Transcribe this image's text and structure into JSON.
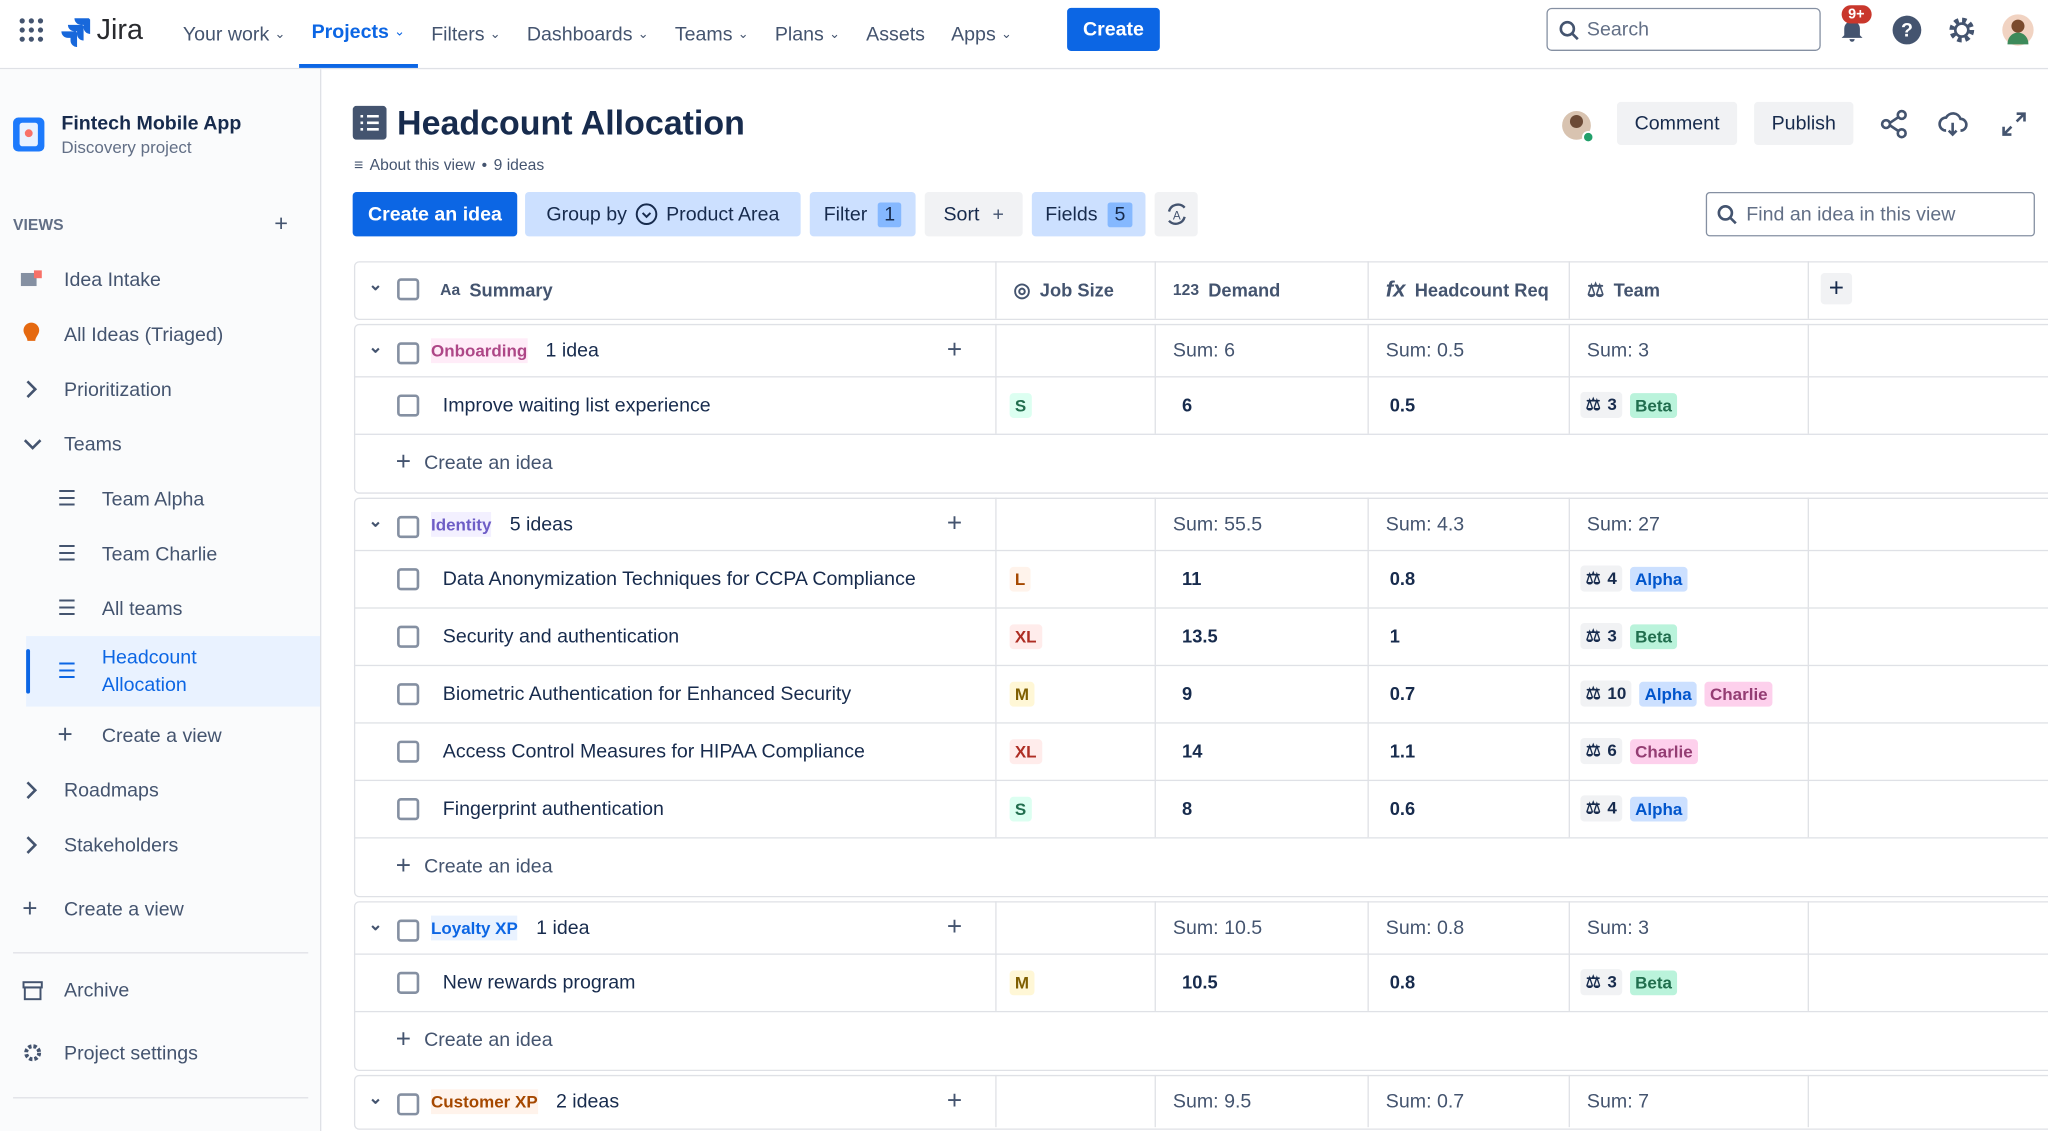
{
  "nav": {
    "product": "Jira",
    "items": [
      "Your work",
      "Projects",
      "Filters",
      "Dashboards",
      "Teams",
      "Plans",
      "Assets",
      "Apps"
    ],
    "create": "Create",
    "search": "Search",
    "badge": "9+"
  },
  "sidebar": {
    "project": "Fintech Mobile App",
    "project_type": "Discovery project",
    "views_label": "VIEWS",
    "items": [
      "Idea Intake",
      "All Ideas (Triaged)",
      "Prioritization",
      "Teams"
    ],
    "team_views": [
      "Team Alpha",
      "Team Charlie",
      "All teams",
      "Headcount Allocation",
      "Create a view"
    ],
    "more": [
      "Roadmaps",
      "Stakeholders",
      "Create a view"
    ],
    "footer": [
      "Archive",
      "Project settings"
    ]
  },
  "header": {
    "title": "Headcount Allocation",
    "about": "About this view",
    "count": "9 ideas",
    "comment": "Comment",
    "publish": "Publish"
  },
  "toolbar": {
    "create": "Create an idea",
    "group_by": "Group by",
    "group_field": "Product Area",
    "filter": "Filter",
    "filter_count": "1",
    "sort": "Sort",
    "fields": "Fields",
    "fields_count": "5",
    "search": "Find an idea in this view"
  },
  "table": {
    "columns": [
      {
        "icon": "Aa",
        "label": "Summary"
      },
      {
        "label": "Job Size"
      },
      {
        "icon": "123",
        "label": "Demand"
      },
      {
        "icon": "fx",
        "label": "Headcount Req"
      },
      {
        "label": "Team"
      }
    ],
    "create_label": "Create an idea",
    "groups": [
      {
        "name": "Onboarding",
        "color": "#ae4787",
        "bg": "#ffecf8",
        "count": "1 idea",
        "sums": [
          "Sum: 6",
          "Sum: 0.5",
          "Sum: 3"
        ],
        "rows": [
          {
            "summary": "Improve waiting list experience",
            "size": {
              "label": "S",
              "color": "#216e4e",
              "bg": "#dcfff1"
            },
            "demand": 6,
            "headcount": 0.5,
            "team_count": 3,
            "teams": [
              {
                "label": "Beta",
                "color": "#216e4e",
                "bg": "#baf3db"
              }
            ]
          }
        ]
      },
      {
        "name": "Identity",
        "color": "#6e5dc6",
        "bg": "#f3f0ff",
        "count": "5 ideas",
        "sums": [
          "Sum: 55.5",
          "Sum: 4.3",
          "Sum: 27"
        ],
        "rows": [
          {
            "summary": "Data Anonymization Techniques for CCPA Compliance",
            "size": {
              "label": "L",
              "color": "#a54800",
              "bg": "#fff3eb"
            },
            "demand": 11,
            "headcount": 0.8,
            "team_count": 4,
            "teams": [
              {
                "label": "Alpha",
                "color": "#0055cc",
                "bg": "#cce0ff"
              }
            ]
          },
          {
            "summary": "Security and authentication",
            "size": {
              "label": "XL",
              "color": "#ae2e24",
              "bg": "#ffeceb"
            },
            "demand": 13.5,
            "headcount": 1,
            "team_count": 3,
            "teams": [
              {
                "label": "Beta",
                "color": "#216e4e",
                "bg": "#baf3db"
              }
            ]
          },
          {
            "summary": "Biometric Authentication for Enhanced Security",
            "size": {
              "label": "M",
              "color": "#7f5f01",
              "bg": "#fff7d6"
            },
            "demand": 9,
            "headcount": 0.7,
            "team_count": 10,
            "teams": [
              {
                "label": "Alpha",
                "color": "#0055cc",
                "bg": "#cce0ff"
              },
              {
                "label": "Charlie",
                "color": "#943d73",
                "bg": "#fdd0ec"
              }
            ]
          },
          {
            "summary": "Access Control Measures for HIPAA Compliance",
            "size": {
              "label": "XL",
              "color": "#ae2e24",
              "bg": "#ffeceb"
            },
            "demand": 14,
            "headcount": 1.1,
            "team_count": 6,
            "teams": [
              {
                "label": "Charlie",
                "color": "#943d73",
                "bg": "#fdd0ec"
              }
            ]
          },
          {
            "summary": "Fingerprint authentication",
            "size": {
              "label": "S",
              "color": "#216e4e",
              "bg": "#dcfff1"
            },
            "demand": 8,
            "headcount": 0.6,
            "team_count": 4,
            "teams": [
              {
                "label": "Alpha",
                "color": "#0055cc",
                "bg": "#cce0ff"
              }
            ]
          }
        ]
      },
      {
        "name": "Loyalty XP",
        "color": "#0c66e4",
        "bg": "#e9f2ff",
        "count": "1 idea",
        "sums": [
          "Sum: 10.5",
          "Sum: 0.8",
          "Sum: 3"
        ],
        "rows": [
          {
            "summary": "New rewards program",
            "size": {
              "label": "M",
              "color": "#7f5f01",
              "bg": "#fff7d6"
            },
            "demand": 10.5,
            "headcount": 0.8,
            "team_count": 3,
            "teams": [
              {
                "label": "Beta",
                "color": "#216e4e",
                "bg": "#baf3db"
              }
            ]
          }
        ]
      },
      {
        "name": "Customer XP",
        "color": "#a54800",
        "bg": "#fff3eb",
        "count": "2 ideas",
        "sums": [
          "Sum: 9.5",
          "Sum: 0.7",
          "Sum: 7"
        ],
        "rows": []
      }
    ]
  }
}
